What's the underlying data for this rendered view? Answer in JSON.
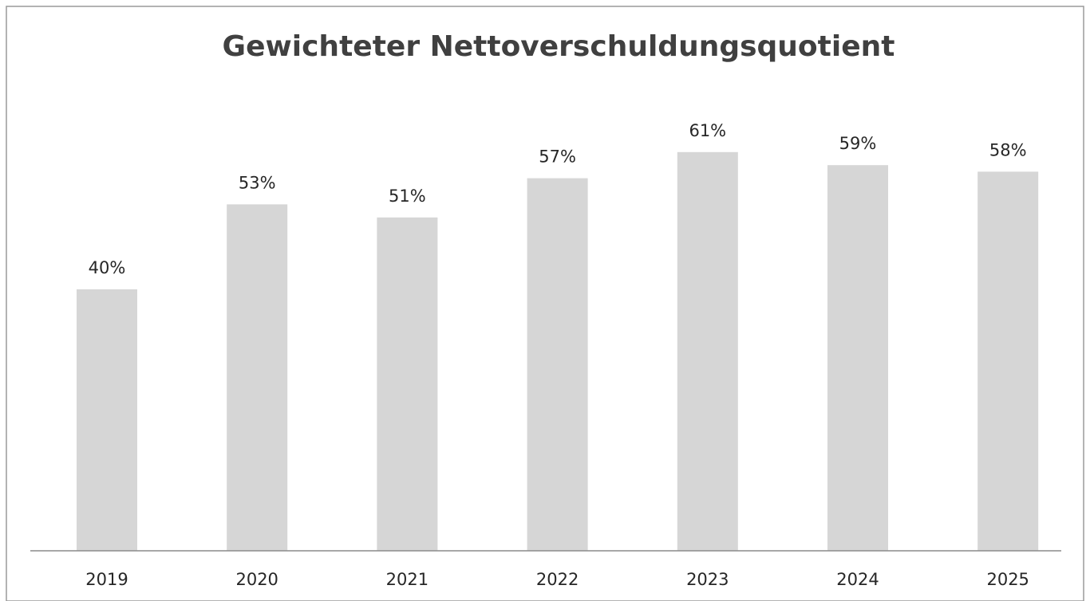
{
  "chart_data": {
    "type": "bar",
    "title": "Gewichteter Nettoverschuldungsquotient",
    "categories": [
      "2019",
      "2020",
      "2021",
      "2022",
      "2023",
      "2024",
      "2025"
    ],
    "values": [
      40,
      53,
      51,
      57,
      61,
      59,
      58
    ],
    "value_labels": [
      "40%",
      "53%",
      "51%",
      "57%",
      "61%",
      "59%",
      "58%"
    ],
    "color": "#d6d6d6"
  }
}
